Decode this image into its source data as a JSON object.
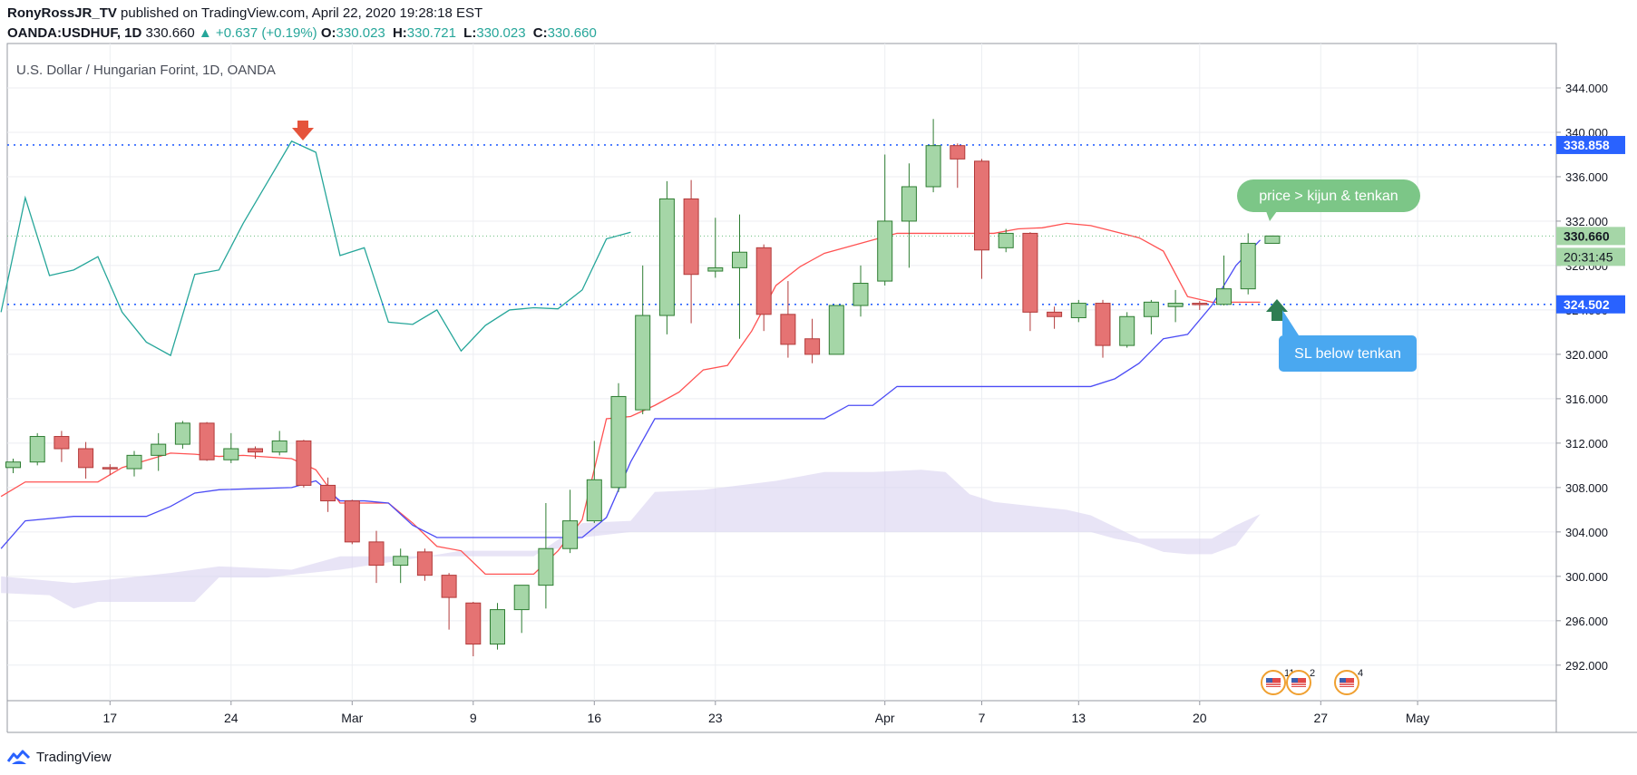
{
  "header": {
    "author": "RonyRossJR_TV",
    "published": "published on TradingView.com, April 22, 2020 19:28:18 EST",
    "symbol": "OANDA:USDHUF, 1D",
    "last": "330.660",
    "change": "▲ +0.637 (+0.19%)",
    "o_label": "O:",
    "o_val": "330.023",
    "h_label": "H:",
    "h_val": "330.721",
    "l_label": "L:",
    "l_val": "330.023",
    "c_label": "C:",
    "c_val": "330.660"
  },
  "footer": {
    "brand": "TradingView"
  },
  "chart_data": {
    "type": "candlestick",
    "title": "U.S. Dollar / Hungarian Forint, 1D, OANDA",
    "y_ticks": [
      "344.000",
      "340.000",
      "336.000",
      "332.000",
      "328.000",
      "324.000",
      "320.000",
      "316.000",
      "312.000",
      "308.000",
      "304.000",
      "300.000",
      "296.000",
      "292.000"
    ],
    "ylim": [
      288.8,
      348.0
    ],
    "x_ticks": [
      {
        "i": 4,
        "label": "17"
      },
      {
        "i": 9,
        "label": "24"
      },
      {
        "i": 14,
        "label": "Mar"
      },
      {
        "i": 19,
        "label": "9"
      },
      {
        "i": 24,
        "label": "16"
      },
      {
        "i": 29,
        "label": "23"
      },
      {
        "i": 36,
        "label": "Apr"
      },
      {
        "i": 40,
        "label": "7"
      },
      {
        "i": 44,
        "label": "13"
      },
      {
        "i": 49,
        "label": "20"
      },
      {
        "i": 54,
        "label": "27"
      },
      {
        "i": 58,
        "label": "May"
      }
    ],
    "candles": [
      [
        309.8,
        310.6,
        309.3,
        310.3
      ],
      [
        310.3,
        312.9,
        310.0,
        312.6
      ],
      [
        312.6,
        313.1,
        310.3,
        311.5
      ],
      [
        311.5,
        312.1,
        308.8,
        309.8
      ],
      [
        309.8,
        310.1,
        309.1,
        309.7
      ],
      [
        309.7,
        311.3,
        309.0,
        310.9
      ],
      [
        310.9,
        312.9,
        309.5,
        311.9
      ],
      [
        311.9,
        314.0,
        311.5,
        313.8
      ],
      [
        313.8,
        313.9,
        310.4,
        310.5
      ],
      [
        310.5,
        312.9,
        310.2,
        311.5
      ],
      [
        311.5,
        311.7,
        310.6,
        311.2
      ],
      [
        311.2,
        313.1,
        310.9,
        312.2
      ],
      [
        312.2,
        312.3,
        308.0,
        308.2
      ],
      [
        308.2,
        308.9,
        305.8,
        306.8
      ],
      [
        306.8,
        306.9,
        302.9,
        303.1
      ],
      [
        303.1,
        304.1,
        299.4,
        301.0
      ],
      [
        301.0,
        302.5,
        299.4,
        301.8
      ],
      [
        302.2,
        302.5,
        299.6,
        300.1
      ],
      [
        300.1,
        300.3,
        295.2,
        298.1
      ],
      [
        297.6,
        297.7,
        292.8,
        293.9
      ],
      [
        293.9,
        297.6,
        293.4,
        297.0
      ],
      [
        297.0,
        299.2,
        294.9,
        299.2
      ],
      [
        299.2,
        306.6,
        297.1,
        302.5
      ],
      [
        302.5,
        307.8,
        302.1,
        305.0
      ],
      [
        305.0,
        312.2,
        304.8,
        308.7
      ],
      [
        308.0,
        317.4,
        307.6,
        316.2
      ],
      [
        315.0,
        328.0,
        314.6,
        323.5
      ],
      [
        323.5,
        335.6,
        321.8,
        334.0
      ],
      [
        334.0,
        335.7,
        322.8,
        327.2
      ],
      [
        327.5,
        332.3,
        326.9,
        327.8
      ],
      [
        327.8,
        332.6,
        321.4,
        329.2
      ],
      [
        329.6,
        329.9,
        322.1,
        323.6
      ],
      [
        323.6,
        326.6,
        319.7,
        320.9
      ],
      [
        321.4,
        323.2,
        319.2,
        320.0
      ],
      [
        320.0,
        324.2,
        320.0,
        324.4
      ],
      [
        324.4,
        328.0,
        323.4,
        326.4
      ],
      [
        326.6,
        338.0,
        326.2,
        332.0
      ],
      [
        332.0,
        337.2,
        327.8,
        335.1
      ],
      [
        335.1,
        341.2,
        334.6,
        338.8
      ],
      [
        338.8,
        339.0,
        335.0,
        337.6
      ],
      [
        337.4,
        337.6,
        326.8,
        329.4
      ],
      [
        329.6,
        331.3,
        329.2,
        330.9
      ],
      [
        330.9,
        331.0,
        322.1,
        323.8
      ],
      [
        323.8,
        324.3,
        322.3,
        323.4
      ],
      [
        323.3,
        324.9,
        322.9,
        324.6
      ],
      [
        324.6,
        324.9,
        319.7,
        320.8
      ],
      [
        320.8,
        323.8,
        320.6,
        323.4
      ],
      [
        323.4,
        324.9,
        321.8,
        324.7
      ],
      [
        324.3,
        325.8,
        322.9,
        324.6
      ],
      [
        324.6,
        324.8,
        324.0,
        324.5
      ],
      [
        324.5,
        328.9,
        324.4,
        325.9
      ],
      [
        325.9,
        330.9,
        325.4,
        330.0
      ],
      [
        330.0,
        330.7,
        330.0,
        330.66
      ]
    ],
    "lines": [
      {
        "color": "#26a69a",
        "values": [
          [
            -0.5,
            323.8
          ],
          [
            0.5,
            334.1
          ],
          [
            1.5,
            327.1
          ],
          [
            2.5,
            327.6
          ],
          [
            3.5,
            328.8
          ],
          [
            4.5,
            323.8
          ],
          [
            5.5,
            321.1
          ],
          [
            6.5,
            319.9
          ],
          [
            7.5,
            327.2
          ],
          [
            8.5,
            327.6
          ],
          [
            9.5,
            331.8
          ],
          [
            10.5,
            335.5
          ],
          [
            11.5,
            339.2
          ],
          [
            12.5,
            338.2
          ],
          [
            13.5,
            328.9
          ],
          [
            14.5,
            329.6
          ],
          [
            15.5,
            322.9
          ],
          [
            16.5,
            322.7
          ],
          [
            17.5,
            324.0
          ],
          [
            18.5,
            320.3
          ],
          [
            19.5,
            322.6
          ],
          [
            20.5,
            324.0
          ],
          [
            21.5,
            324.2
          ],
          [
            22.5,
            324.1
          ],
          [
            23.5,
            325.8
          ],
          [
            24.5,
            330.4
          ],
          [
            25.5,
            331.0
          ]
        ]
      },
      {
        "color": "#ff5252",
        "values": [
          [
            -0.5,
            307.2
          ],
          [
            0.5,
            308.5
          ],
          [
            3.5,
            308.5
          ],
          [
            4.5,
            309.8
          ],
          [
            6.5,
            311.1
          ],
          [
            7.5,
            311.0
          ],
          [
            8.5,
            310.8
          ],
          [
            9.5,
            310.9
          ],
          [
            11.5,
            310.6
          ],
          [
            12.5,
            309.6
          ],
          [
            13.5,
            306.6
          ],
          [
            15.5,
            306.6
          ],
          [
            16.5,
            304.8
          ],
          [
            17.5,
            302.7
          ],
          [
            18.5,
            302.3
          ],
          [
            19.5,
            300.2
          ],
          [
            21.5,
            300.2
          ],
          [
            22.5,
            302.3
          ],
          [
            23.5,
            305.1
          ],
          [
            24.5,
            314.2
          ],
          [
            25.5,
            314.4
          ],
          [
            26.5,
            315.4
          ],
          [
            27.5,
            316.6
          ],
          [
            28.5,
            318.6
          ],
          [
            29.5,
            319.0
          ],
          [
            30.5,
            322.1
          ],
          [
            31.5,
            326.2
          ],
          [
            32.5,
            327.9
          ],
          [
            33.5,
            329.1
          ],
          [
            36.5,
            330.9
          ],
          [
            40.5,
            330.9
          ],
          [
            41.5,
            331.3
          ],
          [
            42.5,
            331.4
          ],
          [
            43.5,
            331.8
          ],
          [
            44.5,
            331.6
          ],
          [
            46.5,
            330.5
          ],
          [
            47.5,
            329.3
          ],
          [
            48.5,
            325.2
          ],
          [
            49.5,
            324.7
          ],
          [
            51.5,
            324.7
          ]
        ]
      },
      {
        "color": "#4c4cf5",
        "values": [
          [
            -0.5,
            302.5
          ],
          [
            0.5,
            305.0
          ],
          [
            2.5,
            305.4
          ],
          [
            5.5,
            305.4
          ],
          [
            6.5,
            306.3
          ],
          [
            7.5,
            307.5
          ],
          [
            8.5,
            307.8
          ],
          [
            11.5,
            308.0
          ],
          [
            12.5,
            308.6
          ],
          [
            13.5,
            306.8
          ],
          [
            14.5,
            306.8
          ],
          [
            15.5,
            306.6
          ],
          [
            16.5,
            304.6
          ],
          [
            17.5,
            303.5
          ],
          [
            20.5,
            303.5
          ],
          [
            21.5,
            303.5
          ],
          [
            23.5,
            303.5
          ],
          [
            24.5,
            305.3
          ],
          [
            25.5,
            310.3
          ],
          [
            26.5,
            314.2
          ],
          [
            33.5,
            314.2
          ],
          [
            34.5,
            315.4
          ],
          [
            35.5,
            315.4
          ],
          [
            36.5,
            317.1
          ],
          [
            44.5,
            317.1
          ],
          [
            45.5,
            317.8
          ],
          [
            46.5,
            319.2
          ],
          [
            47.5,
            321.4
          ],
          [
            48.5,
            321.8
          ],
          [
            49.5,
            324.4
          ],
          [
            50.5,
            328.0
          ],
          [
            51.5,
            330.3
          ]
        ]
      }
    ],
    "cloud": {
      "color": "#d8d2f0",
      "upper": [
        [
          -0.5,
          300.0
        ],
        [
          2.5,
          299.4
        ],
        [
          3.5,
          299.6
        ],
        [
          6.5,
          300.3
        ],
        [
          8.5,
          300.9
        ],
        [
          11.5,
          300.6
        ],
        [
          13.5,
          301.8
        ],
        [
          16.5,
          301.8
        ],
        [
          18.5,
          301.8
        ],
        [
          21.5,
          301.8
        ],
        [
          23.5,
          304.8
        ],
        [
          25.5,
          305.0
        ],
        [
          26.5,
          307.6
        ],
        [
          28.5,
          307.8
        ],
        [
          31.5,
          308.6
        ],
        [
          33.5,
          309.4
        ],
        [
          35.5,
          309.4
        ],
        [
          37.5,
          309.6
        ],
        [
          38.5,
          309.4
        ],
        [
          39.5,
          307.4
        ],
        [
          40.5,
          306.7
        ],
        [
          43.5,
          306.0
        ],
        [
          44.5,
          305.5
        ],
        [
          46.5,
          303.4
        ],
        [
          48.5,
          303.4
        ],
        [
          49.5,
          303.4
        ],
        [
          50.5,
          304.6
        ],
        [
          51.5,
          305.6
        ]
      ],
      "lower": [
        [
          -0.5,
          298.5
        ],
        [
          1.5,
          298.3
        ],
        [
          2.5,
          297.1
        ],
        [
          3.5,
          297.7
        ],
        [
          4.5,
          297.7
        ],
        [
          7.5,
          297.7
        ],
        [
          8.5,
          299.9
        ],
        [
          10.5,
          299.9
        ],
        [
          13.5,
          300.6
        ],
        [
          16.5,
          301.6
        ],
        [
          18.5,
          302.3
        ],
        [
          21.5,
          302.3
        ],
        [
          22.5,
          302.5
        ],
        [
          23.5,
          303.5
        ],
        [
          25.5,
          304.0
        ],
        [
          26.5,
          304.0
        ],
        [
          28.5,
          304.0
        ],
        [
          33.5,
          304.0
        ],
        [
          40.5,
          304.0
        ],
        [
          44.5,
          304.0
        ],
        [
          45.5,
          303.4
        ],
        [
          46.5,
          303.0
        ],
        [
          47.5,
          302.2
        ],
        [
          48.5,
          302.0
        ],
        [
          49.5,
          302.0
        ],
        [
          50.5,
          302.8
        ],
        [
          51.5,
          305.6
        ]
      ]
    },
    "levels": [
      {
        "value": 338.858,
        "label": "338.858",
        "style": "blue-dotted"
      },
      {
        "value": 324.502,
        "label": "324.502",
        "style": "blue-dotted"
      },
      {
        "value": 330.66,
        "label": "330.660",
        "style": "green-dotted"
      }
    ],
    "countdown": "20:31:45",
    "annotations": {
      "green_callout": "price > kijun & tenkan",
      "blue_callout": "SL below tenkan",
      "events": [
        "11",
        "2",
        "4"
      ]
    }
  }
}
